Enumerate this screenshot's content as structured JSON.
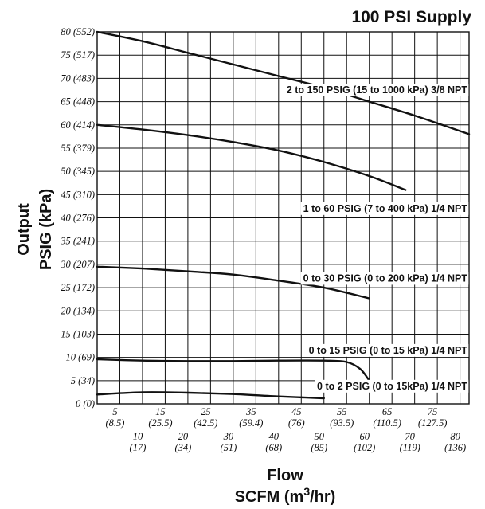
{
  "chart_data": {
    "type": "line",
    "title": "100 PSI Supply",
    "xlabel": "Flow",
    "xlabel_sub_prefix": "SCFM (m",
    "xlabel_sub_sup": "3",
    "xlabel_sub_suffix": "/hr)",
    "ylabel": "Output",
    "ylabel_sub": "PSIG (kPa)",
    "xlim": [
      0,
      82
    ],
    "ylim": [
      0,
      80
    ],
    "grid": true,
    "yticks": [
      {
        "value": 0,
        "label": "0 (0)"
      },
      {
        "value": 5,
        "label": "5 (34)"
      },
      {
        "value": 10,
        "label": "10 (69)"
      },
      {
        "value": 15,
        "label": "15 (103)"
      },
      {
        "value": 20,
        "label": "20 (134)"
      },
      {
        "value": 25,
        "label": "25 (172)"
      },
      {
        "value": 30,
        "label": "30 (207)"
      },
      {
        "value": 35,
        "label": "35 (241)"
      },
      {
        "value": 40,
        "label": "40 (276)"
      },
      {
        "value": 45,
        "label": "45 (310)"
      },
      {
        "value": 50,
        "label": "50 (345)"
      },
      {
        "value": 55,
        "label": "55 (379)"
      },
      {
        "value": 60,
        "label": "60 (414)"
      },
      {
        "value": 65,
        "label": "65 (448)"
      },
      {
        "value": 70,
        "label": "70 (483)"
      },
      {
        "value": 75,
        "label": "75 (517)"
      },
      {
        "value": 80,
        "label": "80 (552)"
      }
    ],
    "xticks": [
      {
        "value": 5,
        "label": "5",
        "sub": "(8.5)"
      },
      {
        "value": 10,
        "label": "10",
        "sub": "(17)"
      },
      {
        "value": 15,
        "label": "15",
        "sub": "(25.5)"
      },
      {
        "value": 20,
        "label": "20",
        "sub": "(34)"
      },
      {
        "value": 25,
        "label": "25",
        "sub": "(42.5)"
      },
      {
        "value": 30,
        "label": "30",
        "sub": "(51)"
      },
      {
        "value": 35,
        "label": "35",
        "sub": "(59.4)"
      },
      {
        "value": 40,
        "label": "40",
        "sub": "(68)"
      },
      {
        "value": 45,
        "label": "45",
        "sub": "(76)"
      },
      {
        "value": 50,
        "label": "50",
        "sub": "(85)"
      },
      {
        "value": 55,
        "label": "55",
        "sub": "(93.5)"
      },
      {
        "value": 60,
        "label": "60",
        "sub": "(102)"
      },
      {
        "value": 65,
        "label": "65",
        "sub": "(110.5)"
      },
      {
        "value": 70,
        "label": "70",
        "sub": "(119)"
      },
      {
        "value": 75,
        "label": "75",
        "sub": "(127.5)"
      },
      {
        "value": 80,
        "label": "80",
        "sub": "(136)"
      }
    ],
    "series": [
      {
        "name": "2 to 150 PSIG (15 to 1000 kPa) 3/8 NPT",
        "x": [
          0,
          10,
          20,
          30,
          40,
          50,
          60,
          70,
          82
        ],
        "y": [
          80,
          78,
          75.5,
          73,
          70.5,
          68,
          65,
          62,
          58
        ]
      },
      {
        "name": "1 to 60 PSIG (7 to 400 kPa) 1/4 NPT",
        "x": [
          0,
          10,
          20,
          30,
          40,
          50,
          60,
          68
        ],
        "y": [
          60,
          59,
          57.8,
          56.3,
          54.5,
          52,
          49,
          46
        ]
      },
      {
        "name": "0 to 30 PSIG (0 to 200 kPa) 1/4 NPT",
        "x": [
          0,
          10,
          20,
          30,
          40,
          50,
          60
        ],
        "y": [
          29.5,
          29.1,
          28.5,
          27.8,
          26.5,
          25,
          22.7
        ]
      },
      {
        "name": "0 to 15 PSIG (0 to 15 kPa) 1/4 NPT",
        "x": [
          0,
          10,
          20,
          30,
          40,
          50,
          55,
          58,
          60
        ],
        "y": [
          9.6,
          9.3,
          9.2,
          9.2,
          9.3,
          9.3,
          9,
          7.5,
          5
        ]
      },
      {
        "name": "0 to 2 PSIG (0 to 15kPa) 1/4 NPT",
        "x": [
          0,
          5,
          10,
          15,
          20,
          30,
          40,
          50
        ],
        "y": [
          2,
          2.3,
          2.5,
          2.5,
          2.4,
          2.1,
          1.6,
          1.2
        ]
      }
    ]
  }
}
